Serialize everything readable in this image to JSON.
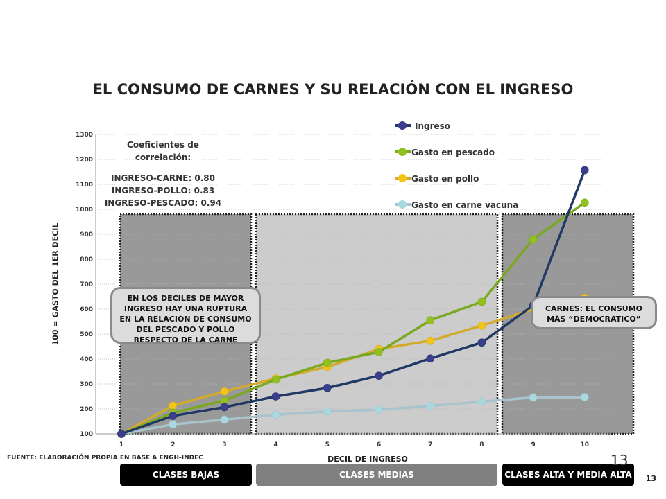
{
  "title": "EL CONSUMO DE CARNES Y SU RELACIÓN CON EL INGRESO",
  "correlation": {
    "heading": "Coeficientes de correlación:",
    "lines": [
      "INGRESO-CARNE: 0.80",
      "INGRESO-POLLO: 0.83",
      "INGRESO-PESCADO: 0.94"
    ]
  },
  "callouts": {
    "left": "EN LOS DECILES DE MAYOR INGRESO HAY UNA RUPTURA EN LA RELACIÓN DE CONSUMO DEL PESCADO Y POLLO RESPECTO DE LA CARNE",
    "right": "CARNES: EL CONSUMO MÁS “DEMOCRÁTICO”"
  },
  "source": "FUENTE: ELABORACIÓN PROPIA EN BASE A ENGH-INDEC",
  "bands": [
    {
      "label": "CLASES BAJAS",
      "color": "#000000"
    },
    {
      "label": "CLASES MEDIAS",
      "color": "#808080"
    },
    {
      "label": "CLASES ALTA Y MEDIA ALTA",
      "color": "#000000"
    }
  ],
  "page_number": "13",
  "page_number_faint": "13",
  "chart_data": {
    "type": "line",
    "xlabel": "DECIL DE INGRESO",
    "ylabel": "100 = GASTO DEL 1ER DECIL",
    "x": [
      1,
      2,
      3,
      4,
      5,
      6,
      7,
      8,
      9,
      10
    ],
    "ylim": [
      100,
      1300
    ],
    "yticks": [
      100,
      200,
      300,
      400,
      500,
      600,
      700,
      800,
      900,
      1000,
      1100,
      1200,
      1300
    ],
    "grid": true,
    "legend_position": "top-right",
    "shaded_regions": [
      {
        "from": 1,
        "to": 3,
        "shade": "#999999"
      },
      {
        "from": 4,
        "to": 8,
        "shade": "#cccccc"
      },
      {
        "from": 9,
        "to": 10,
        "shade": "#999999"
      }
    ],
    "series": [
      {
        "name": "Ingreso",
        "color": "#1f3864",
        "marker": "#3d3d8f",
        "values": [
          100,
          172,
          207,
          250,
          284,
          333,
          402,
          466,
          615,
          1157
        ]
      },
      {
        "name": "Gasto en pescado",
        "color": "#7aa81e",
        "marker": "#92c01f",
        "values": [
          100,
          185,
          233,
          318,
          385,
          428,
          555,
          629,
          880,
          1027
        ]
      },
      {
        "name": "Gasto en pollo",
        "color": "#d4aa2c",
        "marker": "#f2c417",
        "values": [
          100,
          213,
          270,
          322,
          368,
          440,
          473,
          534,
          600,
          645
        ]
      },
      {
        "name": "Gasto en carne vacuna",
        "color": "#a8c4cc",
        "marker": "#a8d8e0",
        "values": [
          100,
          138,
          157,
          177,
          190,
          197,
          212,
          229,
          246,
          247
        ]
      }
    ]
  }
}
